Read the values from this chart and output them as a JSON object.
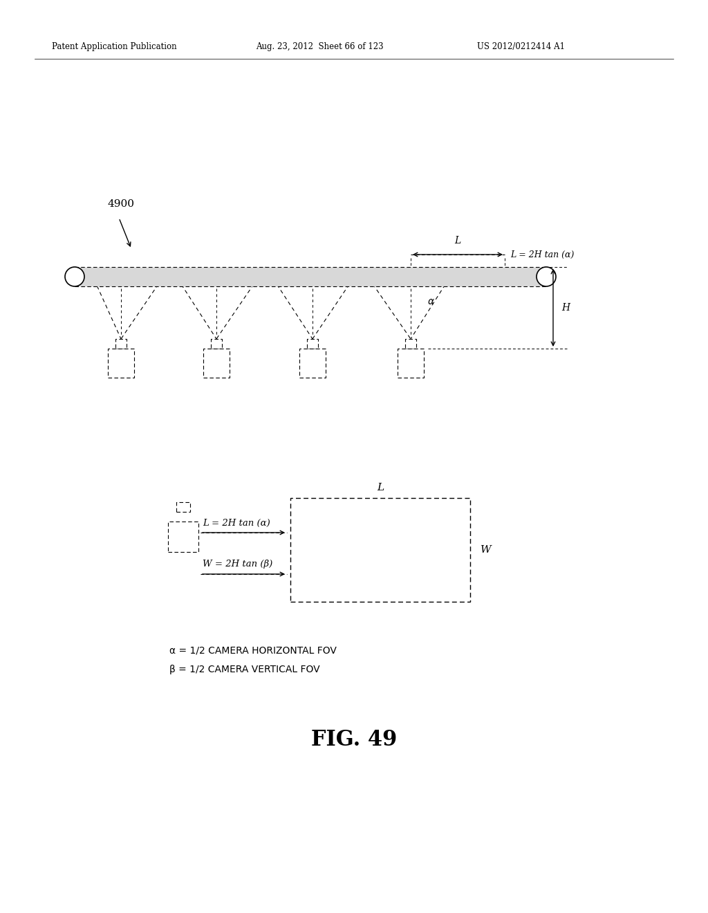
{
  "bg_color": "#ffffff",
  "header_left": "Patent Application Publication",
  "header_mid": "Aug. 23, 2012  Sheet 66 of 123",
  "header_right": "US 2012/0212414 A1",
  "fig_label": "FIG. 49",
  "fig_number_label": "4900",
  "alpha_text": "α = 1/2 CAMERA HORIZONTAL FOV",
  "beta_text": "β = 1/2 CAMERA VERTICAL FOV",
  "L_eq": "L = 2H tan (α)",
  "W_eq": "W = 2H tan (β)",
  "L_label_top": "L = 2H tan (α)"
}
